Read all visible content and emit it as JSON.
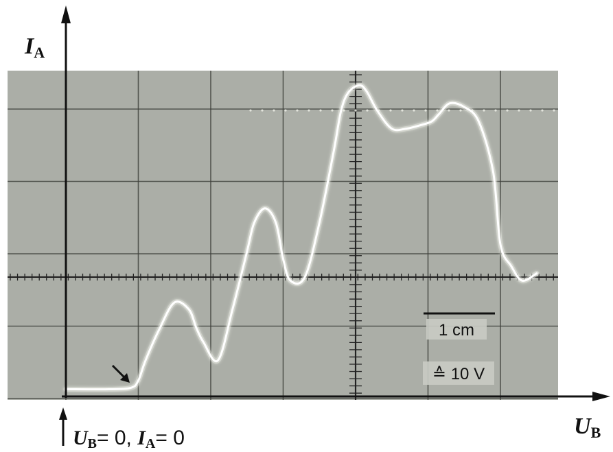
{
  "chart_data": {
    "type": "line",
    "title": "",
    "y_axis_symbol": "I",
    "y_axis_subscript": "A",
    "x_axis_symbol": "U",
    "x_axis_subscript": "B",
    "origin_note": {
      "u_symbol": "U",
      "u_subscript": "B",
      "u_value": "= 0, ",
      "i_symbol": "I",
      "i_subscript": "A",
      "i_value": "= 0"
    },
    "scale_bar_label": "1 cm",
    "scale_equiv_label": "≙ 10 V",
    "x_unit_per_division_V": 10,
    "grid_divisions_x": 7,
    "grid_divisions_y": 4.5,
    "grid": true,
    "xlim": [
      0,
      70
    ],
    "ylim": [
      0,
      4.5
    ],
    "series": [
      {
        "x": [
          0,
          6,
          9,
          10,
          11,
          13,
          15,
          17,
          18,
          19,
          21,
          23,
          25,
          26,
          27.5,
          29,
          30,
          31,
          33,
          35,
          37,
          38,
          39,
          40.5,
          41.5,
          43,
          45,
          47,
          49,
          50.5,
          51.5,
          53,
          55,
          57,
          59,
          60,
          61.5,
          63,
          65
        ],
        "y": [
          0.1,
          0.1,
          0.12,
          0.22,
          0.5,
          0.95,
          1.3,
          1.2,
          0.95,
          0.75,
          0.5,
          1.2,
          2.0,
          2.4,
          2.6,
          2.4,
          1.9,
          1.6,
          1.65,
          2.4,
          3.4,
          3.95,
          4.2,
          4.3,
          4.22,
          3.95,
          3.7,
          3.7,
          3.75,
          3.8,
          3.9,
          4.05,
          4.0,
          3.8,
          3.1,
          2.1,
          1.8,
          1.6,
          1.7
        ]
      }
    ],
    "saturation_level_y": 4.0,
    "arrow_annotation": "diagonal arrow pointing to start of curve"
  }
}
